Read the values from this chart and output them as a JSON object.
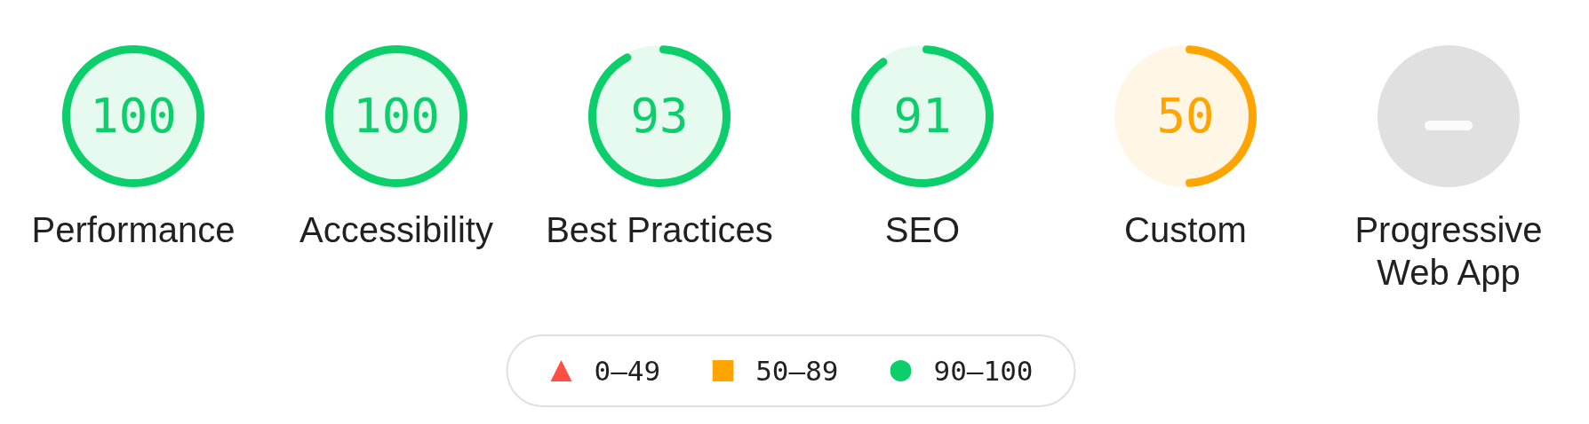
{
  "chart_data": {
    "type": "other",
    "categories": [
      "Performance",
      "Accessibility",
      "Best Practices",
      "SEO",
      "Custom",
      "Progressive Web App"
    ],
    "series": [
      {
        "name": "0–49",
        "color": "#ff4e42",
        "marker": "triangle",
        "values": [
          null,
          null,
          null,
          null,
          null,
          null
        ]
      },
      {
        "name": "50–89",
        "color": "#ffa400",
        "marker": "square",
        "values": [
          null,
          null,
          null,
          null,
          50,
          null
        ]
      },
      {
        "name": "90–100",
        "color": "#0cce6b",
        "marker": "circle",
        "values": [
          100,
          100,
          93,
          91,
          null,
          null
        ]
      }
    ],
    "data_labels": true,
    "legend": "bottom"
  }
}
